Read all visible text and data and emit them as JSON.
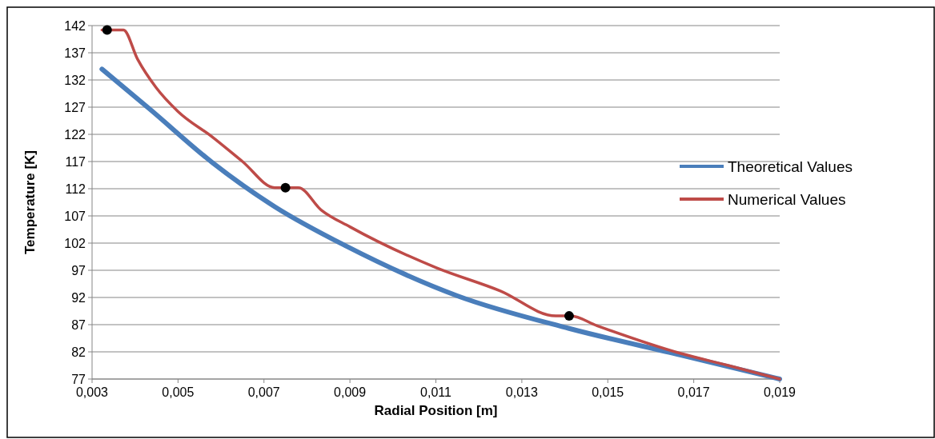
{
  "chart_data": {
    "type": "line",
    "xlabel": "Radial Position [m]",
    "ylabel": "Temperature [K]",
    "xlim": [
      0.003,
      0.019
    ],
    "ylim": [
      77,
      142
    ],
    "xticks": [
      {
        "value": 0.003,
        "label": "0,003"
      },
      {
        "value": 0.005,
        "label": "0,005"
      },
      {
        "value": 0.007,
        "label": "0,007"
      },
      {
        "value": 0.009,
        "label": "0,009"
      },
      {
        "value": 0.011,
        "label": "0,011"
      },
      {
        "value": 0.013,
        "label": "0,013"
      },
      {
        "value": 0.015,
        "label": "0,015"
      },
      {
        "value": 0.017,
        "label": "0,017"
      },
      {
        "value": 0.019,
        "label": "0,019"
      }
    ],
    "yticks": [
      77,
      82,
      87,
      92,
      97,
      102,
      107,
      112,
      117,
      122,
      127,
      132,
      137,
      142
    ],
    "grid": "y",
    "legend": "right",
    "marker": "none",
    "line_style": "solid",
    "series": [
      {
        "name": "Theoretical Values",
        "color": "#4a7ebb",
        "x": [
          0.00323,
          0.00435,
          0.0058,
          0.00725,
          0.0089,
          0.0115,
          0.0141,
          0.0167,
          0.019
        ],
        "values": [
          134,
          126.6,
          116.8,
          108.7,
          101.5,
          92.3,
          86.3,
          81.4,
          77
        ]
      },
      {
        "name": "Numerical Values",
        "color": "#be4b48",
        "x": [
          0.00323,
          0.00373,
          0.00406,
          0.00449,
          0.005,
          0.0058,
          0.0065,
          0.00725,
          0.0078,
          0.00833,
          0.009,
          0.011,
          0.0125,
          0.01379,
          0.01413,
          0.01475,
          0.0167,
          0.0178,
          0.019
        ],
        "values": [
          141.2,
          141.2,
          135.8,
          130.6,
          126.2,
          121.5,
          117,
          112.2,
          112.2,
          108.1,
          105,
          97.5,
          93.2,
          88.6,
          88.6,
          86.8,
          81.7,
          79.5,
          77
        ]
      },
      {
        "type": "scatter",
        "color": "#000000",
        "marker": "circle",
        "x": [
          0.00335,
          0.0075,
          0.0141
        ],
        "values": [
          141.2,
          112.2,
          88.6
        ]
      }
    ]
  }
}
